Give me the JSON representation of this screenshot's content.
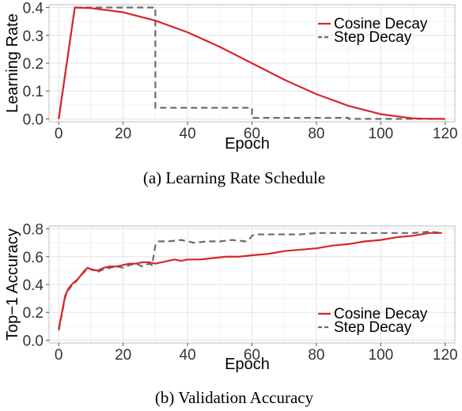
{
  "chart_data": [
    {
      "type": "line",
      "caption": "(a) Learning Rate Schedule",
      "xlabel": "Epoch",
      "ylabel": "Learning Rate",
      "xlim": [
        -3,
        123
      ],
      "ylim": [
        -0.01,
        0.41
      ],
      "xticks": [
        0,
        20,
        40,
        60,
        80,
        100,
        120
      ],
      "yticks": [
        0.0,
        0.1,
        0.2,
        0.3,
        0.4
      ],
      "grid": true,
      "legend": "top-right",
      "series": [
        {
          "name": "Cosine Decay",
          "color": "#d62728",
          "dash": "solid",
          "x": [
            0,
            5,
            10,
            20,
            30,
            40,
            50,
            60,
            70,
            80,
            90,
            100,
            110,
            115,
            120
          ],
          "y": [
            0.0,
            0.4,
            0.398,
            0.383,
            0.353,
            0.311,
            0.259,
            0.2,
            0.141,
            0.089,
            0.047,
            0.017,
            0.002,
            0.0005,
            0.0
          ]
        },
        {
          "name": "Step Decay",
          "color": "#6b6b6b",
          "dash": "dashed",
          "x": [
            0,
            5,
            30,
            30,
            60,
            60,
            90,
            90,
            120
          ],
          "y": [
            0.0,
            0.4,
            0.4,
            0.04,
            0.04,
            0.004,
            0.004,
            0.0004,
            0.0004
          ]
        }
      ]
    },
    {
      "type": "line",
      "caption": "(b) Validation Accuracy",
      "xlabel": "Epoch",
      "ylabel": "Top−1 Accuracy",
      "xlim": [
        -3,
        123
      ],
      "ylim": [
        -0.02,
        0.82
      ],
      "xticks": [
        0,
        20,
        40,
        60,
        80,
        100,
        120
      ],
      "yticks": [
        0.0,
        0.2,
        0.4,
        0.6,
        0.8
      ],
      "grid": true,
      "legend": "bottom-right",
      "series": [
        {
          "name": "Cosine Decay",
          "color": "#d62728",
          "dash": "solid",
          "x": [
            0,
            1,
            2,
            3,
            4,
            5,
            6,
            7,
            8,
            9,
            10,
            12,
            14,
            16,
            18,
            20,
            22,
            24,
            26,
            28,
            30,
            32,
            34,
            36,
            38,
            40,
            44,
            48,
            52,
            56,
            60,
            65,
            70,
            75,
            80,
            85,
            90,
            95,
            100,
            105,
            110,
            115,
            119
          ],
          "y": [
            0.08,
            0.2,
            0.32,
            0.37,
            0.4,
            0.42,
            0.44,
            0.47,
            0.5,
            0.52,
            0.51,
            0.5,
            0.52,
            0.53,
            0.53,
            0.54,
            0.55,
            0.55,
            0.56,
            0.56,
            0.55,
            0.56,
            0.57,
            0.58,
            0.57,
            0.58,
            0.58,
            0.59,
            0.6,
            0.6,
            0.61,
            0.62,
            0.64,
            0.65,
            0.66,
            0.68,
            0.69,
            0.71,
            0.72,
            0.74,
            0.75,
            0.77,
            0.77
          ]
        },
        {
          "name": "Step Decay",
          "color": "#6b6b6b",
          "dash": "dashed",
          "x": [
            0,
            1,
            2,
            3,
            4,
            5,
            6,
            7,
            8,
            9,
            10,
            12,
            14,
            16,
            18,
            20,
            22,
            24,
            26,
            28,
            29,
            30,
            31,
            34,
            38,
            42,
            46,
            50,
            54,
            58,
            59,
            60,
            61,
            65,
            70,
            75,
            80,
            85,
            90,
            95,
            100,
            105,
            110,
            115,
            119
          ],
          "y": [
            0.07,
            0.19,
            0.31,
            0.36,
            0.39,
            0.41,
            0.44,
            0.47,
            0.49,
            0.52,
            0.51,
            0.49,
            0.51,
            0.52,
            0.53,
            0.52,
            0.54,
            0.55,
            0.53,
            0.55,
            0.54,
            0.68,
            0.71,
            0.71,
            0.72,
            0.7,
            0.71,
            0.71,
            0.72,
            0.71,
            0.72,
            0.75,
            0.76,
            0.76,
            0.76,
            0.76,
            0.77,
            0.77,
            0.77,
            0.77,
            0.77,
            0.77,
            0.77,
            0.78,
            0.77
          ]
        }
      ]
    }
  ]
}
